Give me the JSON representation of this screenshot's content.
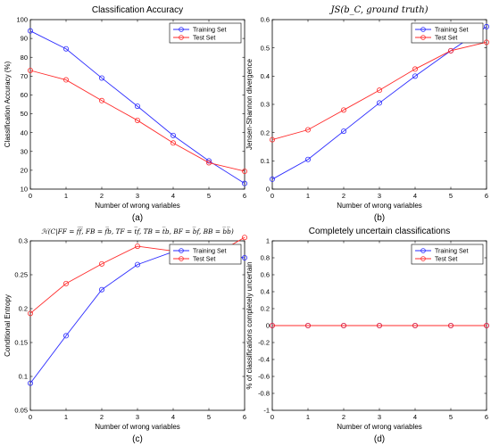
{
  "colors": {
    "training": "#2b2bff",
    "test": "#ff2b2b"
  },
  "chart_data": [
    {
      "type": "line",
      "title": "Classification Accuracy",
      "title_style": "normal",
      "caption": "(a)",
      "xlabel": "Number of wrong variables",
      "ylabel": "Classification Accuracy (%)",
      "xlim": [
        0,
        6
      ],
      "ylim": [
        10,
        100
      ],
      "xticks": [
        0,
        1,
        2,
        3,
        4,
        5,
        6
      ],
      "yticks": [
        10,
        20,
        30,
        40,
        50,
        60,
        70,
        80,
        90,
        100
      ],
      "legend_position": "top-right",
      "x": [
        0,
        1,
        2,
        3,
        4,
        5,
        6
      ],
      "series": [
        {
          "name": "Training Set",
          "color_key": "training",
          "values": [
            94,
            84.5,
            69,
            54,
            38.5,
            25,
            13
          ]
        },
        {
          "name": "Test Set",
          "color_key": "test",
          "values": [
            73,
            68,
            57,
            46.5,
            34.5,
            24,
            19.5
          ]
        }
      ]
    },
    {
      "type": "line",
      "title": "JS(b_C, ground truth)",
      "title_style": "math",
      "caption": "(b)",
      "xlabel": "Number of wrong variables",
      "ylabel": "Jensen-Shannon divergence",
      "xlim": [
        0,
        6
      ],
      "ylim": [
        0,
        0.6
      ],
      "xticks": [
        0,
        1,
        2,
        3,
        4,
        5,
        6
      ],
      "yticks": [
        0,
        0.1,
        0.2,
        0.3,
        0.4,
        0.5,
        0.6
      ],
      "legend_position": "top-right",
      "x": [
        0,
        1,
        2,
        3,
        4,
        5,
        6
      ],
      "series": [
        {
          "name": "Training Set",
          "color_key": "training",
          "values": [
            0.035,
            0.105,
            0.205,
            0.305,
            0.4,
            0.49,
            0.575
          ]
        },
        {
          "name": "Test Set",
          "color_key": "test",
          "values": [
            0.175,
            0.21,
            0.28,
            0.35,
            0.425,
            0.49,
            0.52
          ]
        }
      ]
    },
    {
      "type": "line",
      "title": "ℋ(C|FF = f̅f̅, FB = f̅b, TF = t̅f, TB = t̅b, BF = b̅f, BB = b̅b̅)",
      "title_style": "math-small",
      "caption": "(c)",
      "xlabel": "Number of wrong variables",
      "ylabel": "Conditional Entropy",
      "xlim": [
        0,
        6
      ],
      "ylim": [
        0.05,
        0.3
      ],
      "xticks": [
        0,
        1,
        2,
        3,
        4,
        5,
        6
      ],
      "yticks": [
        0.05,
        0.1,
        0.15,
        0.2,
        0.25,
        0.3
      ],
      "legend_position": "top-right",
      "x": [
        0,
        1,
        2,
        3,
        4,
        5,
        6
      ],
      "series": [
        {
          "name": "Training Set",
          "color_key": "training",
          "values": [
            0.09,
            0.16,
            0.228,
            0.265,
            0.284,
            0.28,
            0.275
          ]
        },
        {
          "name": "Test Set",
          "color_key": "test",
          "values": [
            0.193,
            0.237,
            0.266,
            0.292,
            0.285,
            0.275,
            0.305
          ]
        }
      ]
    },
    {
      "type": "line",
      "title": "Completely uncertain classifications",
      "title_style": "normal",
      "caption": "(d)",
      "xlabel": "Number of wrong variables",
      "ylabel": "% of classifications completely uncertain",
      "xlim": [
        0,
        6
      ],
      "ylim": [
        -1,
        1
      ],
      "xticks": [
        0,
        1,
        2,
        3,
        4,
        5,
        6
      ],
      "yticks": [
        -1,
        -0.8,
        -0.6,
        -0.4,
        -0.2,
        0,
        0.2,
        0.4,
        0.6,
        0.8,
        1
      ],
      "legend_position": "top-right",
      "x": [
        0,
        1,
        2,
        3,
        4,
        5,
        6
      ],
      "series": [
        {
          "name": "Training Set",
          "color_key": "training",
          "values": [
            0,
            0,
            0,
            0,
            0,
            0,
            0
          ]
        },
        {
          "name": "Test Set",
          "color_key": "test",
          "values": [
            0,
            0,
            0,
            0,
            0,
            0,
            0
          ]
        }
      ]
    }
  ]
}
